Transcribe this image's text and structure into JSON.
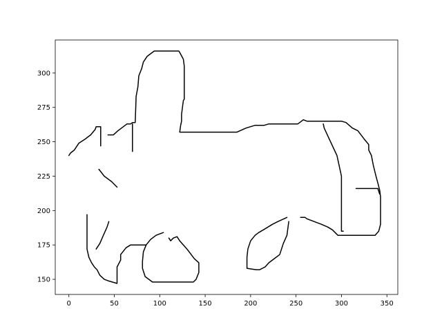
{
  "chart_data": {
    "type": "line",
    "title": "",
    "xlabel": "",
    "ylabel": "",
    "xlim": [
      -15,
      362
    ],
    "ylim": [
      139,
      324
    ],
    "grid": false,
    "line_color": "#000000",
    "x_ticks": [
      0,
      50,
      100,
      150,
      200,
      250,
      300,
      350
    ],
    "y_ticks": [
      150,
      175,
      200,
      225,
      250,
      275,
      300
    ],
    "series": [
      {
        "values": [
          [
            0,
            240
          ],
          [
            2,
            242
          ],
          [
            6,
            244
          ],
          [
            11,
            249
          ],
          [
            18,
            252
          ],
          [
            24,
            255
          ],
          [
            29,
            259
          ],
          [
            30,
            261
          ],
          [
            35,
            261
          ],
          [
            35,
            247
          ]
        ]
      },
      {
        "values": [
          [
            43,
            255
          ],
          [
            49,
            255
          ],
          [
            54,
            258
          ],
          [
            58,
            260
          ],
          [
            64,
            263
          ],
          [
            68,
            263
          ],
          [
            70,
            264
          ],
          [
            73,
            264
          ],
          [
            74,
            283
          ],
          [
            76,
            290
          ],
          [
            77,
            298
          ],
          [
            80,
            303
          ],
          [
            82,
            308
          ],
          [
            86,
            312
          ],
          [
            90,
            314
          ],
          [
            94,
            316
          ],
          [
            103,
            316
          ],
          [
            111,
            316
          ],
          [
            121,
            316
          ],
          [
            122,
            315
          ],
          [
            126,
            310
          ],
          [
            127,
            305
          ],
          [
            127,
            290
          ],
          [
            127,
            281
          ],
          [
            126,
            280
          ],
          [
            125,
            275
          ],
          [
            124,
            270
          ],
          [
            124,
            265
          ],
          [
            123,
            262
          ],
          [
            122,
            257
          ],
          [
            140,
            257
          ],
          [
            170,
            257
          ],
          [
            185,
            257
          ],
          [
            195,
            260
          ],
          [
            205,
            262
          ],
          [
            215,
            262
          ],
          [
            220,
            263
          ],
          [
            235,
            263
          ],
          [
            252,
            263
          ],
          [
            258,
            266
          ],
          [
            262,
            265
          ],
          [
            275,
            265
          ],
          [
            290,
            265
          ],
          [
            300,
            265
          ],
          [
            305,
            264
          ],
          [
            312,
            260
          ],
          [
            318,
            258
          ],
          [
            325,
            252
          ],
          [
            330,
            248
          ],
          [
            330,
            244
          ],
          [
            333,
            240
          ],
          [
            335,
            233
          ],
          [
            338,
            225
          ],
          [
            340,
            220
          ],
          [
            342,
            215
          ],
          [
            343,
            210
          ],
          [
            343,
            200
          ],
          [
            343,
            190
          ],
          [
            341,
            185
          ],
          [
            337,
            182
          ],
          [
            320,
            182
          ],
          [
            296,
            182
          ],
          [
            290,
            186
          ],
          [
            285,
            188
          ],
          [
            278,
            190
          ],
          [
            270,
            192
          ],
          [
            262,
            194
          ],
          [
            260,
            195
          ],
          [
            255,
            195
          ]
        ]
      },
      {
        "values": [
          [
            70,
            263
          ],
          [
            70,
            243
          ]
        ]
      },
      {
        "values": [
          [
            33,
            230
          ],
          [
            39,
            225
          ],
          [
            47,
            221
          ],
          [
            53,
            217
          ]
        ]
      },
      {
        "values": [
          [
            20,
            197
          ],
          [
            20,
            172
          ],
          [
            22,
            166
          ],
          [
            25,
            162
          ],
          [
            28,
            159
          ],
          [
            31,
            157
          ],
          [
            34,
            153
          ],
          [
            39,
            150
          ],
          [
            43,
            149
          ],
          [
            53,
            147
          ],
          [
            53,
            159
          ],
          [
            57,
            164
          ],
          [
            57,
            168
          ],
          [
            63,
            173
          ],
          [
            68,
            175
          ],
          [
            80,
            175
          ],
          [
            85,
            175
          ]
        ]
      },
      {
        "values": [
          [
            30,
            172
          ],
          [
            34,
            176
          ],
          [
            38,
            182
          ],
          [
            42,
            188
          ],
          [
            44,
            192
          ]
        ]
      },
      {
        "values": [
          [
            85,
            175
          ],
          [
            90,
            179
          ],
          [
            96,
            182
          ],
          [
            104,
            184
          ]
        ]
      },
      {
        "values": [
          [
            85,
            175
          ],
          [
            82,
            170
          ],
          [
            81,
            163
          ],
          [
            81,
            158
          ],
          [
            84,
            152
          ],
          [
            92,
            148
          ],
          [
            100,
            148
          ],
          [
            111,
            148
          ],
          [
            120,
            148
          ],
          [
            137,
            148
          ],
          [
            140,
            150
          ],
          [
            143,
            155
          ],
          [
            143,
            162
          ],
          [
            138,
            165
          ],
          [
            130,
            172
          ],
          [
            122,
            178
          ],
          [
            119,
            181
          ],
          [
            115,
            180
          ],
          [
            112,
            178
          ],
          [
            110,
            180
          ]
        ]
      },
      {
        "values": [
          [
            240,
            195
          ],
          [
            230,
            192
          ],
          [
            224,
            190
          ],
          [
            219,
            188
          ],
          [
            214,
            186
          ],
          [
            209,
            184
          ],
          [
            205,
            182
          ],
          [
            200,
            178
          ],
          [
            197,
            172
          ],
          [
            196,
            166
          ],
          [
            196,
            158
          ],
          [
            206,
            157
          ],
          [
            210,
            157
          ],
          [
            216,
            159
          ],
          [
            220,
            162
          ],
          [
            226,
            165
          ],
          [
            232,
            168
          ],
          [
            236,
            176
          ],
          [
            240,
            182
          ],
          [
            242,
            192
          ]
        ]
      },
      {
        "values": [
          [
            280,
            263
          ],
          [
            281,
            260
          ],
          [
            288,
            250
          ],
          [
            295,
            240
          ],
          [
            300,
            225
          ],
          [
            300,
            210
          ],
          [
            300,
            198
          ],
          [
            300,
            185
          ],
          [
            302,
            185
          ]
        ]
      },
      {
        "values": [
          [
            316,
            216
          ],
          [
            340,
            216
          ],
          [
            342,
            212
          ]
        ]
      }
    ]
  }
}
